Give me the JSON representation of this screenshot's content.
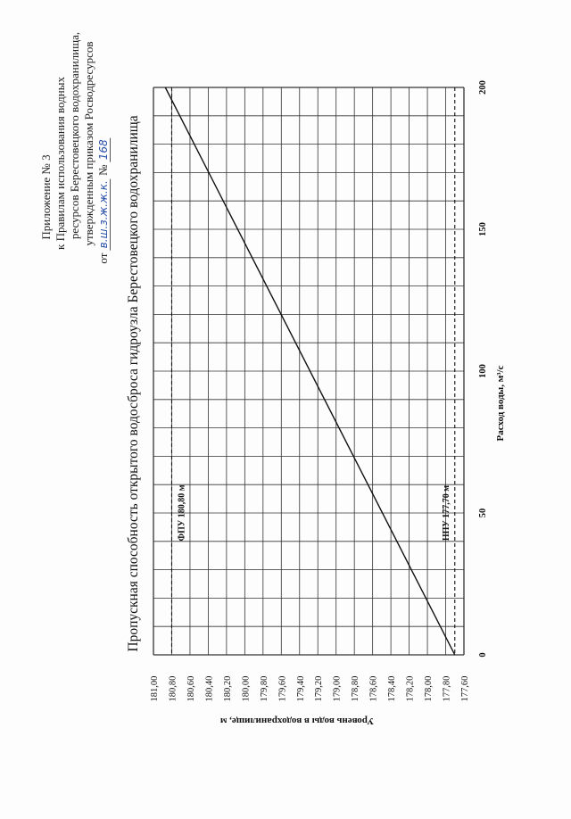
{
  "header": {
    "line1": "Приложение № 3",
    "line2": "к Правилам использования водных",
    "line3": "ресурсов Берестовецкого водохранилища,",
    "line4": "утвержденным приказом Росводресурсов",
    "line5_prefix": "от",
    "line5_date": "в.ш.з.ж.ж.к.",
    "line5_no_label": "№",
    "line5_no_value": "168"
  },
  "chart_data": {
    "type": "line",
    "title": "Пропускная способность открытого водосброса гидроузла Берестовецкого водохранилища",
    "xlabel": "Расход воды, м³/с",
    "ylabel": "Уровень воды в водохранилище, м",
    "xlim": [
      0,
      200
    ],
    "ylim": [
      177.6,
      181.0
    ],
    "xticks": [
      "0",
      "50",
      "100",
      "150",
      "200"
    ],
    "yticks": [
      "181,00",
      "180,80",
      "180,60",
      "180,40",
      "180,20",
      "180,00",
      "179,80",
      "179,60",
      "179,40",
      "179,20",
      "179,00",
      "178,80",
      "178,60",
      "178,40",
      "178,20",
      "178,00",
      "177,80",
      "177,60"
    ],
    "grid": true,
    "series": [
      {
        "x": [
          0,
          200
        ],
        "y": [
          177.7,
          180.87
        ],
        "color": "#111111"
      }
    ],
    "annotations": [
      {
        "text": "ФПУ 180,80 м",
        "y": 180.8,
        "x": 50
      },
      {
        "text": "НПУ 177,70 м",
        "y": 177.7,
        "x": 50
      }
    ]
  }
}
